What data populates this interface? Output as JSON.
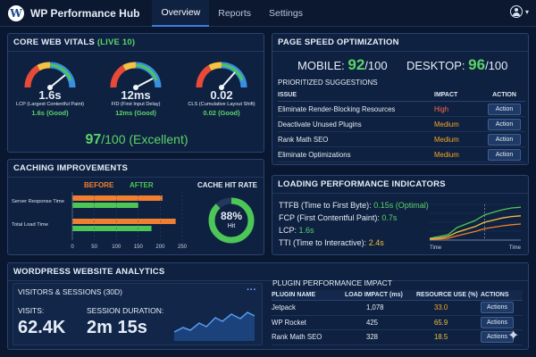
{
  "app": {
    "title": "WP Performance Hub",
    "logo_letter": "W"
  },
  "nav": {
    "tabs": [
      "Overview",
      "Reports",
      "Settings"
    ],
    "active": "Overview",
    "user_chevron": "▾"
  },
  "core_web_vitals": {
    "title": "CORE WEB VITALS",
    "live": "(LIVE 10)",
    "gauges": [
      {
        "value": "1.6s",
        "label": "LCP (Largest Contentful Paint)",
        "status_value": "1.6s",
        "status": "(Good)"
      },
      {
        "value": "12ms",
        "label": "FID (First Input Delay)",
        "status_value": "12ms",
        "status": "(Good)"
      },
      {
        "value": "0.02",
        "label": "CLS (Cumulative Layout Shift)",
        "status_value": "0.02",
        "status": "(Good)"
      }
    ],
    "score": "97",
    "score_suffix": "/100 (Excellent)"
  },
  "page_speed": {
    "title": "PAGE SPEED OPTIMIZATION",
    "mobile_label": "MOBILE:",
    "mobile_score": "92",
    "desktop_label": "DESKTOP:",
    "desktop_score": "96",
    "score_suffix": "/100",
    "suggestions_title": "PRIORITIZED SUGGESTIONS",
    "columns": [
      "ISSUE",
      "IMPACT",
      "ACTION"
    ],
    "rows": [
      {
        "issue": "Eliminate Render-Blocking Resources",
        "impact": "High",
        "action": "Action"
      },
      {
        "issue": "Deactivate Unused Plugins",
        "impact": "Medium",
        "action": "Action"
      },
      {
        "issue": "Rank Math SEO",
        "impact": "Medium",
        "action": "Action"
      },
      {
        "issue": "Eliminate Optimizations",
        "impact": "Medium",
        "action": "Action"
      }
    ]
  },
  "caching": {
    "title": "CACHING IMPROVEMENTS",
    "before_label": "BEFORE",
    "after_label": "AFTER",
    "cache_hit_title": "CACHE HIT RATE",
    "cache_hit_value": "88%",
    "cache_hit_sub": "Hit",
    "cache_hit_fraction": 0.88
  },
  "chart_data": [
    {
      "type": "bar",
      "categories": [
        "Server Response Time",
        "Total Load Time"
      ],
      "series": [
        {
          "name": "BEFORE",
          "values": [
            205,
            235
          ]
        },
        {
          "name": "AFTER",
          "values": [
            150,
            180
          ]
        }
      ],
      "xticks": [
        "0",
        "50",
        "100",
        "150",
        "200",
        "250"
      ],
      "xlim": [
        0,
        250
      ]
    },
    {
      "type": "line",
      "xlabel_start": "Time",
      "xlabel_end": "Time",
      "x": [
        0,
        1,
        2,
        3,
        4,
        5,
        6,
        7,
        8,
        9,
        10
      ],
      "series": [
        {
          "values": [
            0.05,
            0.1,
            0.15,
            0.35,
            0.45,
            0.55,
            0.7,
            0.78,
            0.85,
            0.9,
            0.92
          ]
        },
        {
          "values": [
            0.03,
            0.06,
            0.1,
            0.22,
            0.3,
            0.38,
            0.5,
            0.56,
            0.62,
            0.66,
            0.68
          ]
        },
        {
          "values": [
            0.01,
            0.03,
            0.05,
            0.12,
            0.18,
            0.24,
            0.32,
            0.36,
            0.4,
            0.43,
            0.45
          ]
        }
      ]
    }
  ],
  "loading": {
    "title": "LOADING PERFORMANCE INDICATORS",
    "items": [
      {
        "label": "TTFB (Time to First Byte):",
        "value": "0.15s (Optimal)"
      },
      {
        "label": "FCP (First Contentful Paint):",
        "value": "0.7s"
      },
      {
        "label": "LCP:",
        "value": "1.6s"
      },
      {
        "label": "TTI (Time to Interactive):",
        "value": "2.4s"
      }
    ]
  },
  "analytics": {
    "title": "WORDPRESS WEBSITE ANALYTICS",
    "visitors_title": "VISITORS & SESSIONS (30D)",
    "more": "···",
    "visits_label": "VISITS:",
    "visits_value": "62.4K",
    "duration_label": "SESSION DURATION:",
    "duration_value": "2m 15s",
    "plugin_title": "PLUGIN PERFORMANCE IMPACT",
    "plugin_columns": [
      "PLUGIN NAME",
      "LOAD IMPACT (ms)",
      "RESOURCE USE (%)",
      "ACTIONS"
    ],
    "plugins": [
      {
        "name": "Jetpack",
        "load": "1,078",
        "use": "33.0",
        "action": "Actions"
      },
      {
        "name": "WP Rocket",
        "load": "425",
        "use": "65.9",
        "action": "Actions"
      },
      {
        "name": "Rank Math SEO",
        "load": "328",
        "use": "18.5",
        "action": "Actions"
      }
    ]
  },
  "colors": {
    "accent": "#3b7de0",
    "good": "#5cd36a",
    "warn": "#f0c040",
    "bad": "#ff6a4a",
    "before": "#f08030",
    "after": "#4cc656"
  }
}
